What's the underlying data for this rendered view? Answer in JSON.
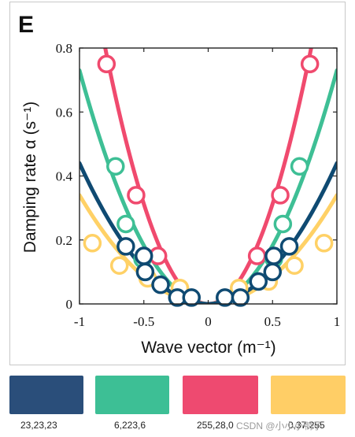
{
  "panel_letter": "E",
  "chart_data": {
    "type": "scatter",
    "xlabel": "Wave vector (m⁻¹)",
    "ylabel": "Damping rate α (s⁻¹)",
    "xlim": [
      -1,
      1
    ],
    "ylim": [
      0,
      0.8
    ],
    "x_ticks": [
      -1,
      -0.5,
      0,
      0.5,
      1
    ],
    "x_tick_labels": [
      "-1",
      "-0.5",
      "0",
      "0.5",
      "1"
    ],
    "y_ticks": [
      0,
      0.2,
      0.4,
      0.6,
      0.8
    ],
    "y_tick_labels": [
      "0",
      "0.2",
      "0.4",
      "0.6",
      "0.8"
    ],
    "grid": false,
    "series": [
      {
        "color": "#ffd166",
        "fit_coefficient": 0.34,
        "points": [
          {
            "x": -0.9,
            "y": 0.19
          },
          {
            "x": -0.69,
            "y": 0.12
          },
          {
            "x": -0.47,
            "y": 0.08
          },
          {
            "x": -0.22,
            "y": 0.05
          },
          {
            "x": 0.24,
            "y": 0.05
          },
          {
            "x": 0.47,
            "y": 0.07
          },
          {
            "x": 0.67,
            "y": 0.12
          },
          {
            "x": 0.9,
            "y": 0.19
          }
        ]
      },
      {
        "color": "#f04a6e",
        "fit_coefficient": 1.25,
        "points": [
          {
            "x": -0.79,
            "y": 0.75
          },
          {
            "x": -0.56,
            "y": 0.34
          },
          {
            "x": -0.39,
            "y": 0.15
          },
          {
            "x": 0.38,
            "y": 0.15
          },
          {
            "x": 0.56,
            "y": 0.34
          },
          {
            "x": 0.79,
            "y": 0.75
          }
        ]
      },
      {
        "color": "#3ebf95",
        "fit_coefficient": 0.73,
        "points": [
          {
            "x": -0.72,
            "y": 0.43
          },
          {
            "x": -0.64,
            "y": 0.25
          },
          {
            "x": -0.51,
            "y": 0.14
          },
          {
            "x": 0.51,
            "y": 0.14
          },
          {
            "x": 0.58,
            "y": 0.25
          },
          {
            "x": 0.71,
            "y": 0.43
          }
        ]
      },
      {
        "color": "#0f4a72",
        "fit_coefficient": 0.44,
        "points": [
          {
            "x": -0.64,
            "y": 0.18
          },
          {
            "x": -0.5,
            "y": 0.15
          },
          {
            "x": -0.49,
            "y": 0.1
          },
          {
            "x": -0.37,
            "y": 0.06
          },
          {
            "x": -0.24,
            "y": 0.02
          },
          {
            "x": -0.13,
            "y": 0.02
          },
          {
            "x": 0.13,
            "y": 0.02
          },
          {
            "x": 0.25,
            "y": 0.02
          },
          {
            "x": 0.39,
            "y": 0.07
          },
          {
            "x": 0.5,
            "y": 0.1
          },
          {
            "x": 0.51,
            "y": 0.15
          },
          {
            "x": 0.63,
            "y": 0.18
          }
        ]
      }
    ]
  },
  "palette": [
    {
      "color": "#2a4e7a",
      "label": "23,23,23"
    },
    {
      "color": "#3dbf95",
      "label": "6,223,6"
    },
    {
      "color": "#ee4a70",
      "label": "255,28,0"
    },
    {
      "color": "#ffce66",
      "label": "0,37,255"
    }
  ],
  "watermark": "CSDN @小小小鸭子"
}
